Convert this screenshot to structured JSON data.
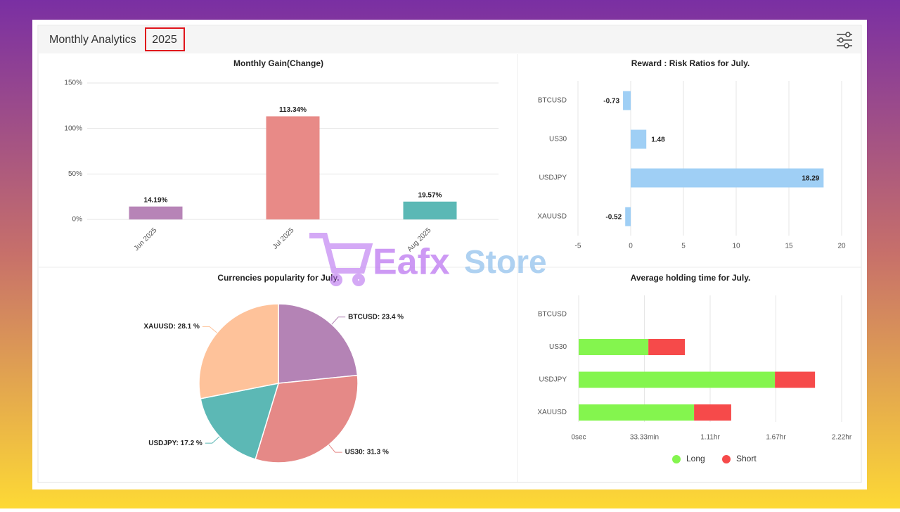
{
  "header": {
    "title": "Monthly Analytics",
    "year": "2025"
  },
  "watermark": [
    "Eafx",
    "Store"
  ],
  "chart_data": [
    {
      "type": "bar",
      "title": "Monthly Gain(Change)",
      "categories": [
        "Jun 2025",
        "Jul 2025",
        "Aug 2025"
      ],
      "values": [
        14.19,
        113.34,
        19.57
      ],
      "value_labels": [
        "14.19%",
        "113.34%",
        "19.57%"
      ],
      "colors": [
        "#b784b7",
        "#e88a87",
        "#5bb8b5"
      ],
      "ylim": [
        0,
        150
      ],
      "yticks": [
        {
          "value": 0,
          "label": "0%"
        },
        {
          "value": 50,
          "label": "50%"
        },
        {
          "value": 100,
          "label": "100%"
        },
        {
          "value": 150,
          "label": "150%"
        }
      ],
      "grid": true
    },
    {
      "type": "hbar",
      "title": "Reward : Risk Ratios for July.",
      "categories": [
        "BTCUSD",
        "US30",
        "USDJPY",
        "XAUUSD"
      ],
      "values": [
        -0.73,
        1.48,
        18.29,
        -0.52
      ],
      "color": "#9fcff5",
      "xlim": [
        -5,
        20
      ],
      "xticks": [
        -5,
        0,
        5,
        10,
        15,
        20
      ],
      "grid": true
    },
    {
      "type": "pie",
      "title": "Currencies popularity for July.",
      "values": [
        23.4,
        31.3,
        17.2,
        28.1
      ],
      "value_labels": [
        "BTCUSD: 23.4 %",
        "US30: 31.3 %",
        "USDJPY: 17.2 %",
        "XAUUSD: 28.1 %"
      ],
      "colors": [
        "#b483b5",
        "#e58987",
        "#5cb8b5",
        "#fec29a"
      ]
    },
    {
      "type": "stacked_hbar",
      "title": "Average holding time for July.",
      "categories": [
        "BTCUSD",
        "US30",
        "USDJPY",
        "XAUUSD"
      ],
      "series": [
        {
          "name": "Long",
          "color": "#84f54e",
          "values": [
            0,
            2120,
            5970,
            3510
          ]
        },
        {
          "name": "Short",
          "color": "#f64a4a",
          "values": [
            0,
            1110,
            1220,
            1130
          ]
        }
      ],
      "xlim": [
        0,
        8000
      ],
      "xticks": [
        {
          "value": 0,
          "label": "0sec"
        },
        {
          "value": 2000,
          "label": "33.33min"
        },
        {
          "value": 4000,
          "label": "1.11hr"
        },
        {
          "value": 6000,
          "label": "1.67hr"
        },
        {
          "value": 8000,
          "label": "2.22hr"
        }
      ],
      "grid": true,
      "legend": "bottom"
    }
  ]
}
